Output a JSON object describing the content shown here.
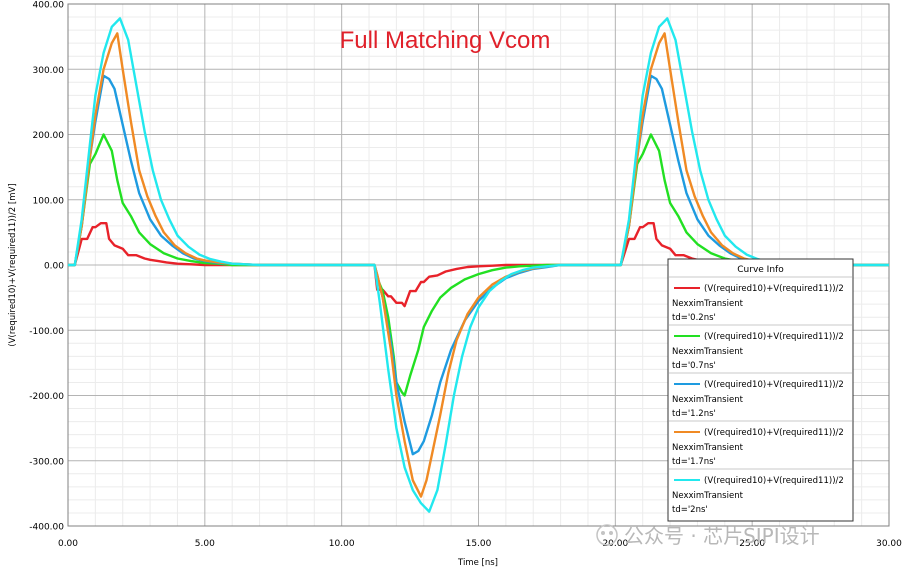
{
  "chart_data": {
    "type": "line",
    "annotation": "Full Matching Vcom",
    "annotation_color": "#e0202a",
    "xlabel": "Time [ns]",
    "ylabel": "(V(required10)+V(required11))/2 [mV]",
    "xlim": [
      0,
      30
    ],
    "ylim": [
      -400,
      400
    ],
    "x_ticks": [
      0,
      5,
      10,
      15,
      20,
      25,
      30
    ],
    "x_tick_labels": [
      "0.00",
      "5.00",
      "10.00",
      "15.00",
      "20.00",
      "25.00",
      "30.00"
    ],
    "y_ticks": [
      400,
      300,
      200,
      100,
      0,
      -100,
      -200,
      -300,
      -400
    ],
    "y_tick_labels": [
      "400.00",
      "300.00",
      "200.00",
      "100.00",
      "0.00",
      "-100.00",
      "-200.00",
      "-300.00",
      "-400.00"
    ],
    "grid": true,
    "legend": {
      "title": "Curve Info",
      "placement": "bottom-right",
      "entries": [
        {
          "expr": "(V(required10)+V(required11))/2",
          "source": "NexximTransient",
          "param": "td='0.2ns'"
        },
        {
          "expr": "(V(required10)+V(required11))/2",
          "source": "NexximTransient",
          "param": "td='0.7ns'"
        },
        {
          "expr": "(V(required10)+V(required11))/2",
          "source": "NexximTransient",
          "param": "td='1.2ns'"
        },
        {
          "expr": "(V(required10)+V(required11))/2",
          "source": "NexximTransient",
          "param": "td='1.7ns'"
        },
        {
          "expr": "(V(required10)+V(required11))/2",
          "source": "NexximTransient",
          "param": "td='2ns'"
        }
      ]
    },
    "series": [
      {
        "color": "#e8222a",
        "x": [
          0,
          0.25,
          0.5,
          0.7,
          0.9,
          1.0,
          1.2,
          1.4,
          1.5,
          1.7,
          2.0,
          2.2,
          2.5,
          2.8,
          3.0,
          3.3,
          3.6,
          4.0,
          4.5,
          5.0,
          5.5,
          6.0,
          7.0,
          8.0,
          9.0,
          10.0,
          11.2,
          11.3,
          11.5,
          11.7,
          11.8,
          12.0,
          12.2,
          12.3,
          12.5,
          12.7,
          12.9,
          13.0,
          13.2,
          13.5,
          13.8,
          14.2,
          14.6,
          15.0,
          15.5,
          16.0,
          17.0,
          18.0,
          20.0,
          20.2,
          20.5,
          20.7,
          20.9,
          21.0,
          21.2,
          21.4,
          21.5,
          21.7,
          22.0,
          22.2,
          22.5,
          22.8,
          23.0,
          23.3,
          23.6,
          24.0,
          24.5,
          25.0,
          26.0,
          27.0,
          28.0,
          30.0
        ],
        "y": [
          0,
          0,
          40,
          40,
          58,
          58,
          64,
          64,
          40,
          30,
          25,
          15,
          15,
          10,
          8,
          6,
          4,
          2,
          1,
          0,
          0,
          0,
          0,
          0,
          0,
          0,
          0,
          -38,
          -38,
          -48,
          -48,
          -58,
          -58,
          -63,
          -40,
          -40,
          -26,
          -26,
          -18,
          -16,
          -10,
          -6,
          -3,
          -2,
          -1,
          0,
          0,
          0,
          0,
          0,
          40,
          40,
          58,
          58,
          64,
          64,
          40,
          30,
          25,
          15,
          15,
          10,
          8,
          6,
          4,
          2,
          1,
          0,
          0,
          0,
          0,
          0
        ]
      },
      {
        "color": "#22e022",
        "x": [
          0,
          0.25,
          0.5,
          0.8,
          1.0,
          1.3,
          1.6,
          1.8,
          2.0,
          2.3,
          2.6,
          3.0,
          3.5,
          4.0,
          4.5,
          5.0,
          5.5,
          6.0,
          7.0,
          8.0,
          9.0,
          10.0,
          11.2,
          11.3,
          11.5,
          11.7,
          11.9,
          12.0,
          12.2,
          12.3,
          12.5,
          12.8,
          13.0,
          13.3,
          13.6,
          14.0,
          14.5,
          15.0,
          15.5,
          16.0,
          16.5,
          17.0,
          17.5,
          18.0,
          20.0,
          20.2,
          20.5,
          20.8,
          21.0,
          21.3,
          21.6,
          21.8,
          22.0,
          22.3,
          22.6,
          23.0,
          23.5,
          24.0,
          24.5,
          25.0,
          25.5,
          26.0,
          27.0,
          28.0,
          30.0
        ],
        "y": [
          0,
          0,
          60,
          155,
          170,
          200,
          175,
          130,
          95,
          75,
          50,
          32,
          18,
          10,
          6,
          3,
          2,
          0,
          0,
          0,
          0,
          0,
          0,
          -20,
          -40,
          -80,
          -140,
          -180,
          -195,
          -200,
          -170,
          -130,
          -95,
          -70,
          -50,
          -35,
          -22,
          -14,
          -8,
          -4,
          -2,
          -1,
          0,
          0,
          0,
          0,
          60,
          155,
          170,
          200,
          175,
          130,
          95,
          75,
          50,
          32,
          18,
          10,
          6,
          3,
          2,
          0,
          0,
          0,
          0
        ]
      },
      {
        "color": "#1e9be0",
        "x": [
          0,
          0.25,
          0.5,
          0.8,
          1.0,
          1.3,
          1.5,
          1.7,
          2.0,
          2.3,
          2.6,
          3.0,
          3.4,
          3.8,
          4.2,
          4.6,
          5.0,
          5.5,
          6.0,
          6.5,
          7.0,
          8.0,
          9.0,
          10.0,
          11.2,
          11.3,
          11.5,
          11.8,
          12.0,
          12.3,
          12.6,
          12.8,
          13.0,
          13.3,
          13.6,
          14.0,
          14.5,
          15.0,
          15.5,
          16.0,
          16.5,
          17.0,
          17.5,
          18.0,
          20.0,
          20.2,
          20.5,
          20.8,
          21.0,
          21.3,
          21.5,
          21.7,
          22.0,
          22.3,
          22.6,
          23.0,
          23.4,
          23.8,
          24.2,
          24.6,
          25.0,
          25.5,
          26.0,
          26.5,
          27.0,
          28.0,
          30.0
        ],
        "y": [
          0,
          0,
          60,
          165,
          220,
          290,
          285,
          270,
          215,
          160,
          110,
          70,
          45,
          30,
          18,
          10,
          6,
          3,
          2,
          1,
          0,
          0,
          0,
          0,
          0,
          -15,
          -50,
          -120,
          -180,
          -240,
          -290,
          -285,
          -270,
          -230,
          -180,
          -130,
          -85,
          -55,
          -35,
          -20,
          -12,
          -6,
          -3,
          0,
          0,
          0,
          60,
          165,
          220,
          290,
          285,
          270,
          215,
          160,
          110,
          70,
          45,
          30,
          18,
          10,
          6,
          3,
          2,
          1,
          0,
          0,
          0
        ]
      },
      {
        "color": "#f08a24",
        "x": [
          0,
          0.25,
          0.5,
          0.8,
          1.0,
          1.3,
          1.6,
          1.8,
          2.0,
          2.3,
          2.6,
          2.9,
          3.2,
          3.5,
          3.9,
          4.3,
          4.7,
          5.0,
          5.5,
          6.0,
          6.5,
          7.0,
          8.0,
          9.0,
          10.0,
          11.2,
          11.3,
          11.5,
          11.8,
          12.0,
          12.3,
          12.6,
          12.9,
          13.1,
          13.3,
          13.6,
          13.9,
          14.2,
          14.6,
          15.0,
          15.5,
          16.0,
          16.5,
          17.0,
          17.5,
          18.0,
          20.0,
          20.2,
          20.5,
          20.8,
          21.0,
          21.3,
          21.6,
          21.8,
          22.0,
          22.3,
          22.6,
          22.9,
          23.2,
          23.5,
          23.9,
          24.3,
          24.7,
          25.0,
          25.5,
          26.0,
          26.5,
          27.0,
          28.0,
          30.0
        ],
        "y": [
          0,
          0,
          60,
          165,
          230,
          300,
          340,
          355,
          300,
          220,
          145,
          105,
          75,
          50,
          30,
          18,
          10,
          7,
          4,
          2,
          1,
          0,
          0,
          0,
          0,
          0,
          -15,
          -50,
          -130,
          -200,
          -270,
          -330,
          -355,
          -330,
          -290,
          -230,
          -165,
          -115,
          -75,
          -50,
          -30,
          -18,
          -10,
          -5,
          -2,
          0,
          0,
          0,
          60,
          165,
          230,
          300,
          340,
          355,
          300,
          220,
          145,
          105,
          75,
          50,
          30,
          18,
          10,
          7,
          4,
          2,
          1,
          0,
          0,
          0
        ]
      },
      {
        "color": "#22e8ee",
        "x": [
          0,
          0.25,
          0.5,
          0.8,
          1.0,
          1.3,
          1.6,
          1.9,
          2.2,
          2.5,
          2.8,
          3.1,
          3.4,
          3.7,
          4.0,
          4.4,
          4.8,
          5.2,
          5.6,
          6.0,
          6.5,
          7.0,
          8.0,
          9.0,
          10.0,
          11.2,
          11.4,
          11.7,
          12.0,
          12.3,
          12.6,
          12.9,
          13.2,
          13.5,
          13.8,
          14.1,
          14.4,
          14.7,
          15.0,
          15.4,
          15.8,
          16.2,
          16.6,
          17.0,
          17.5,
          18.0,
          20.0,
          20.2,
          20.5,
          20.8,
          21.0,
          21.3,
          21.6,
          21.9,
          22.2,
          22.5,
          22.8,
          23.1,
          23.4,
          23.7,
          24.0,
          24.4,
          24.8,
          25.2,
          25.6,
          26.0,
          26.5,
          27.0,
          28.0,
          30.0
        ],
        "y": [
          0,
          0,
          70,
          185,
          260,
          325,
          365,
          378,
          345,
          275,
          205,
          145,
          100,
          70,
          45,
          28,
          16,
          9,
          5,
          2,
          1,
          0,
          0,
          0,
          0,
          0,
          -60,
          -160,
          -250,
          -310,
          -345,
          -365,
          -378,
          -345,
          -275,
          -200,
          -140,
          -95,
          -65,
          -40,
          -25,
          -14,
          -8,
          -4,
          -2,
          0,
          0,
          0,
          70,
          185,
          260,
          325,
          365,
          378,
          345,
          275,
          205,
          145,
          100,
          70,
          45,
          28,
          16,
          9,
          5,
          2,
          1,
          0,
          0,
          0
        ]
      }
    ]
  },
  "watermark": "公众号 · 芯片SIPI设计"
}
